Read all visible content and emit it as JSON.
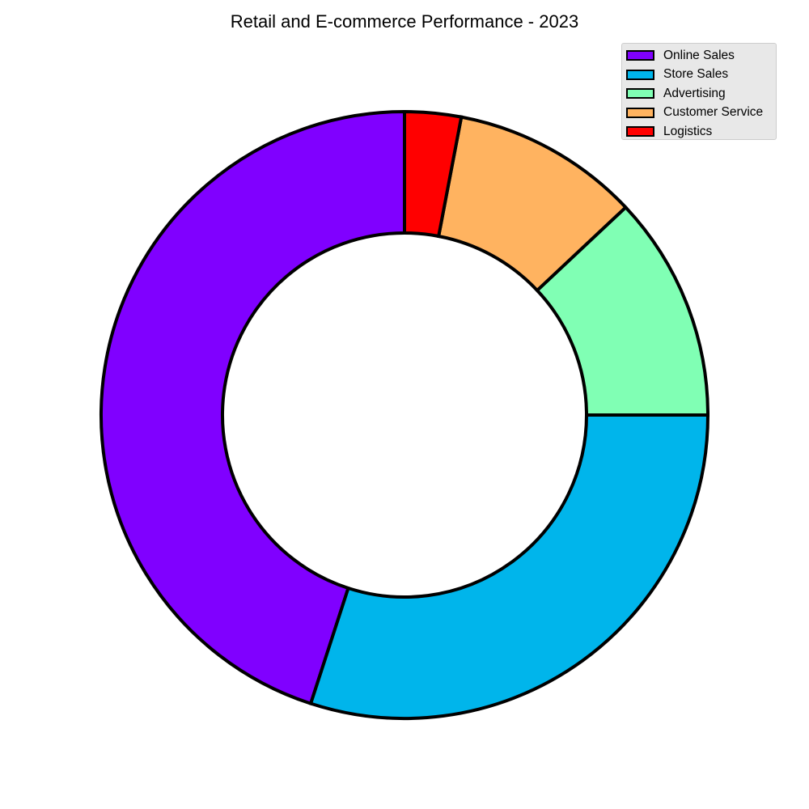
{
  "chart_data": {
    "type": "pie",
    "variant": "donut",
    "title": "Retail and E-commerce Performance - 2023",
    "start_angle_deg": 90,
    "direction": "counterclockwise",
    "legend_position": "upper-right",
    "slices": [
      {
        "label": "Online Sales",
        "value": 45,
        "color": "#8000ff"
      },
      {
        "label": "Store Sales",
        "value": 30,
        "color": "#00b5eb"
      },
      {
        "label": "Advertising",
        "value": 12,
        "color": "#80ffb4"
      },
      {
        "label": "Customer Service",
        "value": 10,
        "color": "#ffb360"
      },
      {
        "label": "Logistics",
        "value": 3,
        "color": "#ff0000"
      }
    ]
  }
}
